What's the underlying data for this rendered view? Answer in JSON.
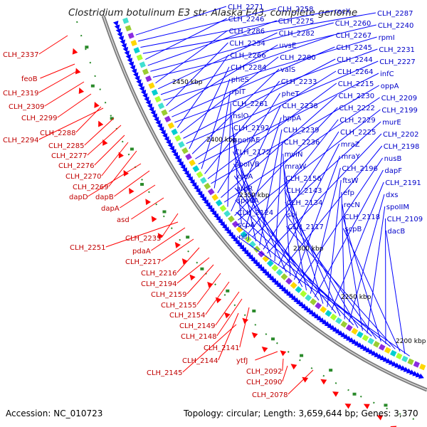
{
  "title": "Clostridium botulinum E3 str. Alaska E43, complete genome",
  "footer": {
    "accession": "Accession: NC_010723",
    "topology": "Topology: circular; Length: 3,659,644 bp; Genes: 3,370"
  },
  "ticks": [
    "2450 kbp",
    "2400 kbp",
    "2350 kbp",
    "2300 kbp",
    "2250 kbp",
    "2200 kbp"
  ],
  "left_labels": [
    "CLH_2337",
    "feoB",
    "CLH_2319",
    "CLH_2309",
    "CLH_2299",
    "CLH_2288",
    "CLH_2294",
    "CLH_2285",
    "CLH_2277",
    "CLH_2276",
    "CLH_2270",
    "CLH_2269",
    "dapD",
    "dapB",
    "dapA",
    "asd",
    "CLH_2235",
    "CLH_2251",
    "pdaA",
    "CLH_2217",
    "CLH_2216",
    "CLH_2194",
    "CLH_2159",
    "CLH_2155",
    "CLH_2154",
    "CLH_2149",
    "CLH_2148",
    "CLH_2141",
    "CLH_2144",
    "CLH_2145",
    "ytfJ",
    "CLH_2092",
    "CLH_2090",
    "CLH_2078"
  ],
  "right_labels": [
    "CLH_2271",
    "CLH_2258",
    "recX",
    "CLH_2287",
    "CLH_2246",
    "CLH_2275",
    "CLH_2260",
    "CLH_2240",
    "CLH_2286",
    "CLH_2282",
    "CLH_2267",
    "rpmI",
    "CLH_2234",
    "uvsE",
    "CLH_2245",
    "CLH_2231",
    "CLH_2266",
    "CLH_2280",
    "CLH_2244",
    "CLH_2227",
    "CLH_2284",
    "valS",
    "CLH_2264",
    "infC",
    "pheS",
    "CLH_2233",
    "CLH_2215",
    "oppA",
    "rplT",
    "pheT",
    "CLH_2230",
    "CLH_2209",
    "CLH_2261",
    "CLH_2238",
    "CLH_2222",
    "CLH_2199",
    "hslO",
    "hppA",
    "CLH_2229",
    "murE",
    "CLH_2192",
    "CLH_2239",
    "CLH_2225",
    "CLH_2202",
    "spoIIAE",
    "CLH_2236",
    "mraZ",
    "CLH_2198",
    "CLH_2172",
    "mviN",
    "mraY",
    "nusB",
    "spoIVB",
    "mraW",
    "CLH_2196",
    "dapF",
    "xseA",
    "CLH_2156",
    "ftsW",
    "CLH_2191",
    "argR",
    "CLH_2143",
    "efp",
    "dxs",
    "spo0A",
    "CLH_2134",
    "recN",
    "spoIIM",
    "CLH_2124",
    "soj",
    "CLH_2118",
    "CLH_2109",
    "scpA",
    "CLH_2117",
    "scpB",
    "dacB",
    "nifJ"
  ],
  "colors": {
    "forward": "#0000ff",
    "reverse": "#ff0000",
    "label_red": "#c00000",
    "label_blue": "#0000c8",
    "backbone": "#888888"
  }
}
